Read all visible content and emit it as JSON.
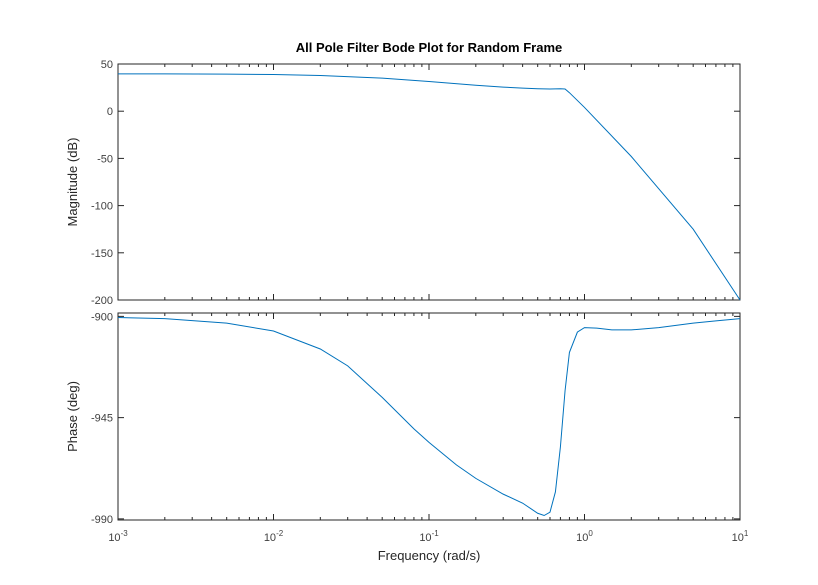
{
  "chart_data": {
    "type": "line",
    "title": "All Pole Filter Bode Plot for Random Frame",
    "xlabel": "Frequency  (rad/s)",
    "xscale": "log",
    "xlim": [
      0.001,
      10
    ],
    "xticks": [
      {
        "value": 0.001,
        "base": "10",
        "exp": "-3"
      },
      {
        "value": 0.01,
        "base": "10",
        "exp": "-2"
      },
      {
        "value": 0.1,
        "base": "10",
        "exp": "-1"
      },
      {
        "value": 1,
        "base": "10",
        "exp": "0"
      },
      {
        "value": 10,
        "base": "10",
        "exp": "1"
      }
    ],
    "grid": false,
    "color": "#0072BD",
    "panels": [
      {
        "id": "magnitude",
        "ylabel": "Magnitude (dB)",
        "ylim": [
          -200,
          50
        ],
        "yticks": [
          50,
          0,
          -50,
          -100,
          -150,
          -200
        ],
        "series": [
          {
            "x": [
              0.001,
              0.002,
              0.005,
              0.01,
              0.02,
              0.05,
              0.1,
              0.2,
              0.3,
              0.4,
              0.5,
              0.6,
              0.7,
              0.75,
              0.8,
              1,
              2,
              5,
              10
            ],
            "y": [
              39.5,
              39.5,
              39.3,
              38.9,
              37.8,
              35,
              31.5,
              27.5,
              25.5,
              24.5,
              23.8,
              23.5,
              23.8,
              23.5,
              19.6,
              4,
              -48,
              -125,
              -200
            ]
          }
        ]
      },
      {
        "id": "phase",
        "ylabel": "Phase (deg)",
        "ylim": [
          -990.5,
          -898.5
        ],
        "yticks": [
          -900,
          -945,
          -990
        ],
        "series": [
          {
            "x": [
              0.001,
              0.002,
              0.005,
              0.01,
              0.02,
              0.03,
              0.05,
              0.08,
              0.1,
              0.15,
              0.2,
              0.3,
              0.4,
              0.5,
              0.55,
              0.6,
              0.65,
              0.7,
              0.75,
              0.8,
              0.9,
              1,
              1.2,
              1.5,
              2,
              3,
              5,
              7,
              10
            ],
            "y": [
              -900.5,
              -901,
              -903,
              -906.5,
              -914.5,
              -922,
              -936,
              -950,
              -956,
              -966,
              -972,
              -979,
              -983,
              -987.5,
              -988.5,
              -987,
              -978,
              -958,
              -933,
              -916,
              -907,
              -905,
              -905.2,
              -906,
              -906,
              -905,
              -903,
              -902,
              -901
            ]
          }
        ]
      }
    ]
  }
}
